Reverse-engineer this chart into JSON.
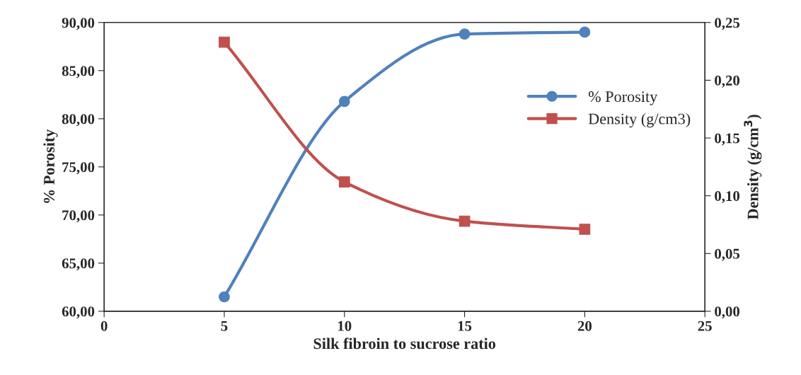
{
  "chart_data": {
    "type": "line",
    "xlabel": "Silk fibroin to sucrose ratio",
    "ylabel": "% Porosity",
    "y2label": "Density (g/cm$^{3}$)",
    "x": [
      5,
      10,
      15,
      20
    ],
    "series": [
      {
        "name": "% Porosity",
        "color": "#4f81bd",
        "values": [
          61.5,
          81.8,
          88.8,
          89.0
        ],
        "marker": "circle"
      },
      {
        "name": "Density (g/cm3)",
        "color": "#c0504d",
        "values": [
          0.233,
          0.112,
          0.078,
          0.071
        ],
        "marker": "square",
        "axis": "y2"
      }
    ],
    "xlim": [
      0,
      25
    ],
    "xticks": [
      0,
      5,
      10,
      15,
      20,
      25
    ],
    "ylim": [
      60,
      90
    ],
    "yticks": [
      {
        "value": 60,
        "label": "60,00"
      },
      {
        "value": 65,
        "label": "65,00"
      },
      {
        "value": 70,
        "label": "70,00"
      },
      {
        "value": 75,
        "label": "75,00"
      },
      {
        "value": 80,
        "label": "80,00"
      },
      {
        "value": 85,
        "label": "85,00"
      },
      {
        "value": 90,
        "label": "90,00"
      }
    ],
    "y2lim": [
      0,
      0.25
    ],
    "y2ticks": [
      {
        "value": 0,
        "label": "0,00"
      },
      {
        "value": 0.05,
        "label": "0,05"
      },
      {
        "value": 0.1,
        "label": "0,10"
      },
      {
        "value": 0.15,
        "label": "0,15"
      },
      {
        "value": 0.2,
        "label": "0,20"
      },
      {
        "value": 0.25,
        "label": "0,25"
      }
    ],
    "legend": "right",
    "grid": false,
    "line_style": "solid"
  }
}
